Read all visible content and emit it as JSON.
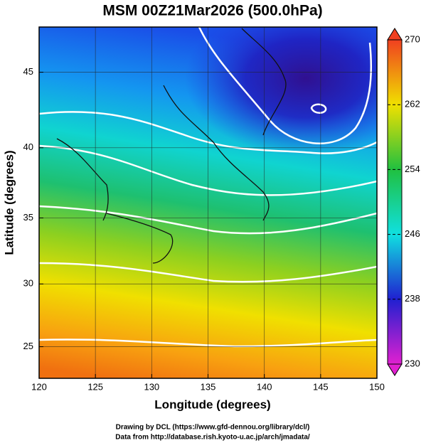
{
  "title": "MSM 00Z21Mar2026 (500.0hPa)",
  "x_axis": {
    "label": "Longitude (degrees)",
    "lim": [
      120,
      150
    ],
    "ticks": [
      120,
      125,
      130,
      135,
      140,
      145,
      150
    ]
  },
  "y_axis": {
    "label": "Latitude  (degrees)",
    "lim": [
      22.4,
      47.8
    ],
    "ticks": [
      25,
      30,
      35,
      40,
      45
    ],
    "projection": "mercator"
  },
  "grid": true,
  "colorbar": {
    "lim": [
      230,
      270
    ],
    "ticks": [
      230,
      238,
      246,
      254,
      262,
      270
    ],
    "colors": [
      "#e020d0",
      "#2020d0",
      "#10e0e0",
      "#20c040",
      "#f0e000",
      "#f04020"
    ]
  },
  "footer": [
    "Drawing by DCL (https://www.gfd-dennou.org/library/dcl/)",
    "Data from http://database.rish.kyoto-u.ac.jp/arch/jmadata/"
  ]
}
